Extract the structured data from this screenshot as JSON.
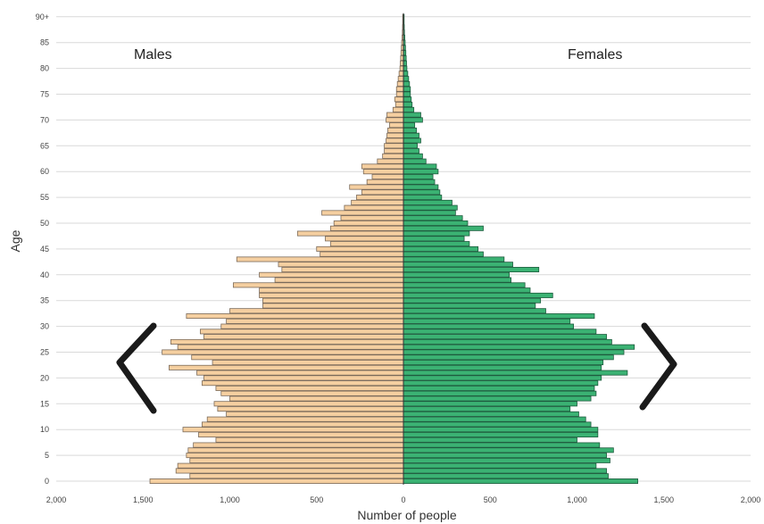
{
  "chart_data": {
    "type": "bar",
    "orientation": "horizontal",
    "subtype": "population-pyramid",
    "xlabel": "Number of people",
    "ylabel": "Age",
    "xlim": [
      -2000,
      2000
    ],
    "x_ticks": [
      -2000,
      -1500,
      -1000,
      -500,
      0,
      500,
      1000,
      1500,
      2000
    ],
    "x_tick_labels": [
      "2,000",
      "1,500",
      "1,000",
      "500",
      "0",
      "500",
      "1,000",
      "1,500",
      "2,000"
    ],
    "y_ticks": [
      0,
      5,
      10,
      15,
      20,
      25,
      30,
      35,
      40,
      45,
      50,
      55,
      60,
      65,
      70,
      75,
      80,
      85,
      90
    ],
    "y_tick_labels": [
      "0",
      "5",
      "10",
      "15",
      "20",
      "25",
      "30",
      "35",
      "40",
      "45",
      "50",
      "55",
      "60",
      "65",
      "70",
      "75",
      "80",
      "85",
      "90+"
    ],
    "grid": true,
    "categories": [
      "0",
      "1",
      "2",
      "3",
      "4",
      "5",
      "6",
      "7",
      "8",
      "9",
      "10",
      "11",
      "12",
      "13",
      "14",
      "15",
      "16",
      "17",
      "18",
      "19",
      "20",
      "21",
      "22",
      "23",
      "24",
      "25",
      "26",
      "27",
      "28",
      "29",
      "30",
      "31",
      "32",
      "33",
      "34",
      "35",
      "36",
      "37",
      "38",
      "39",
      "40",
      "41",
      "42",
      "43",
      "44",
      "45",
      "46",
      "47",
      "48",
      "49",
      "50",
      "51",
      "52",
      "53",
      "54",
      "55",
      "56",
      "57",
      "58",
      "59",
      "60",
      "61",
      "62",
      "63",
      "64",
      "65",
      "66",
      "67",
      "68",
      "69",
      "70",
      "71",
      "72",
      "73",
      "74",
      "75",
      "76",
      "77",
      "78",
      "79",
      "80",
      "81",
      "82",
      "83",
      "84",
      "85",
      "86",
      "87",
      "88",
      "89",
      "90+"
    ],
    "series": [
      {
        "name": "Males",
        "color": "#f5cfa0",
        "values": [
          1460,
          1230,
          1310,
          1300,
          1230,
          1250,
          1240,
          1210,
          1080,
          1180,
          1270,
          1160,
          1130,
          1020,
          1070,
          1090,
          1000,
          1050,
          1080,
          1160,
          1150,
          1190,
          1350,
          1100,
          1220,
          1390,
          1300,
          1340,
          1150,
          1170,
          1050,
          1020,
          1250,
          1000,
          810,
          810,
          830,
          830,
          980,
          740,
          830,
          700,
          720,
          960,
          480,
          500,
          420,
          450,
          610,
          420,
          400,
          360,
          470,
          340,
          300,
          270,
          240,
          310,
          210,
          180,
          230,
          240,
          150,
          120,
          110,
          110,
          100,
          95,
          90,
          80,
          100,
          95,
          60,
          45,
          50,
          40,
          40,
          35,
          30,
          25,
          20,
          18,
          16,
          14,
          12,
          10,
          8,
          6,
          5,
          4,
          4
        ],
        "value_sign": "plotted to the left of zero"
      },
      {
        "name": "Females",
        "color": "#3bb273",
        "values": [
          1350,
          1180,
          1170,
          1110,
          1190,
          1170,
          1210,
          1130,
          1000,
          1120,
          1120,
          1080,
          1050,
          1010,
          960,
          1000,
          1080,
          1110,
          1100,
          1120,
          1140,
          1290,
          1140,
          1150,
          1210,
          1270,
          1330,
          1200,
          1170,
          1110,
          980,
          960,
          1100,
          820,
          760,
          790,
          860,
          730,
          700,
          620,
          610,
          780,
          630,
          580,
          460,
          430,
          380,
          350,
          380,
          460,
          370,
          340,
          300,
          310,
          280,
          220,
          210,
          200,
          180,
          170,
          200,
          190,
          130,
          110,
          90,
          80,
          100,
          90,
          75,
          65,
          110,
          100,
          60,
          50,
          45,
          40,
          40,
          35,
          30,
          25,
          20,
          18,
          16,
          14,
          12,
          10,
          8,
          6,
          5,
          4,
          4
        ]
      }
    ]
  },
  "labels": {
    "males": "Males",
    "females": "Females"
  },
  "colors": {
    "male_fill": "#f5cfa0",
    "female_fill": "#3bb273",
    "bracket": "#1a1a1a",
    "grid": "#d9d9d9"
  }
}
